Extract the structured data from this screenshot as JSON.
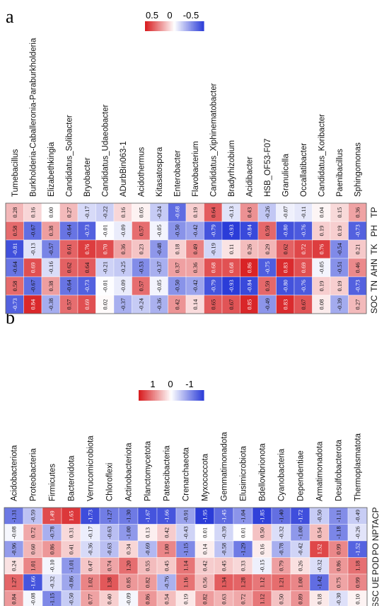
{
  "figure": {
    "panel_a_label": "a",
    "panel_b_label": "b"
  },
  "colors": {
    "positive": "#d7191c",
    "zero": "#ffffff",
    "negative": "#2b3cd8"
  },
  "chart_data": [
    {
      "type": "heatmap",
      "panel": "a",
      "colorbar": {
        "ticks": [
          "0.5",
          "0",
          "-0.5"
        ],
        "range": [
          -0.9,
          0.9
        ]
      },
      "columns": [
        "Tumebacillus",
        "Burkholderia-Caballeronia-Paraburkholderia",
        "Elizabethkingia",
        "Candidatus_Solibacter",
        "Bryobacter",
        "Candidatus_Udaeobacter",
        "ADurbBin063-1",
        "Acidothermus",
        "Kitasatospora",
        "Enterobacter",
        "Flavobacterium",
        "Candidatus_Xiphinematobacter",
        "Bradyrhizobium",
        "Acidibacter",
        "HSB_OF53-F07",
        "Granulicella",
        "Occallatibacter",
        "Candidatus_Koribacter",
        "Paenibacillus",
        "Sphingomonas"
      ],
      "rows": [
        "TP",
        "PH",
        "TK",
        "AHN",
        "TN",
        "SOC"
      ],
      "values": [
        [
          0.28,
          0.16,
          0.0,
          0.27,
          -0.17,
          -0.22,
          0.16,
          0.05,
          -0.24,
          -0.68,
          0.19,
          0.64,
          -0.13,
          0.43,
          -0.26,
          -0.07,
          -0.11,
          0.04,
          0.15,
          0.36
        ],
        [
          0.58,
          -0.67,
          0.38,
          -0.64,
          -0.73,
          -0.01,
          -0.09,
          0.57,
          -0.05,
          -0.5,
          -0.42,
          -0.79,
          -0.93,
          -0.84,
          0.59,
          -0.8,
          -0.76,
          0.19,
          0.19,
          -0.73
        ],
        [
          -0.81,
          -0.13,
          -0.57,
          0.61,
          0.76,
          0.7,
          0.36,
          0.23,
          -0.48,
          0.18,
          0.49,
          -0.19,
          0.11,
          0.26,
          0.29,
          0.62,
          0.72,
          0.76,
          -0.54,
          0.21
        ],
        [
          -0.64,
          0.69,
          -0.16,
          0.62,
          0.64,
          -0.21,
          -0.25,
          -0.53,
          -0.37,
          0.37,
          0.36,
          0.68,
          0.68,
          0.86,
          -0.75,
          0.83,
          0.69,
          -0.05,
          -0.51,
          0.46
        ],
        [
          0.58,
          -0.67,
          0.38,
          -0.64,
          -0.73,
          -0.01,
          -0.09,
          0.57,
          -0.05,
          -0.5,
          -0.42,
          -0.79,
          -0.93,
          -0.84,
          0.59,
          -0.8,
          -0.76,
          0.19,
          0.19,
          -0.73
        ],
        [
          -0.73,
          0.84,
          -0.38,
          0.57,
          0.69,
          0.02,
          -0.37,
          -0.24,
          -0.36,
          0.42,
          0.14,
          0.65,
          0.67,
          0.85,
          -0.49,
          0.83,
          0.67,
          0.08,
          -0.39,
          0.27
        ]
      ]
    },
    {
      "type": "heatmap",
      "panel": "b",
      "colorbar": {
        "ticks": [
          "1",
          "0",
          "-1"
        ],
        "range": [
          -1.9,
          1.9
        ]
      },
      "columns": [
        "Acidobacteriota",
        "Proteobacteria",
        "Firmicutes",
        "Bacteroidota",
        "Verrucomicrobiota",
        "Chloroflexi",
        "Actinobacteriota",
        "Planctomycetota",
        "Patescibacteria",
        "Crenarchaeota",
        "Myxococcota",
        "Gemmatimonadota",
        "Elusimicrobiota",
        "Bdellovibrionota",
        "Cyanobacteria",
        "Dependentiae",
        "Armatimonadota",
        "Desulfobacterota",
        "Thermoplasmatota"
      ],
      "rows": [
        "ACP",
        "NPT",
        "PO",
        "POD",
        "UE",
        "SSC"
      ],
      "values": [
        [
          -1.31,
          -0.59,
          1.49,
          1.65,
          -1.73,
          -1.27,
          -1.3,
          -1.67,
          -1.66,
          -0.91,
          -1.95,
          -1.45,
          -1.04,
          -1.85,
          -1.4,
          -1.72,
          -0.5,
          -1.11,
          -0.49
        ],
        [
          -0.08,
          0.72,
          -0.78,
          0.31,
          -0.17,
          -0.63,
          -1.0,
          0.13,
          0.42,
          -0.43,
          0.01,
          -0.39,
          0.01,
          0.5,
          -0.32,
          -1.0,
          0.54,
          -1.18,
          -0.26
        ],
        [
          -0.96,
          0.6,
          0.86,
          0.41,
          -0.36,
          -0.63,
          0.34,
          -0.69,
          1.0,
          -1.15,
          0.14,
          -0.58,
          -1.29,
          0.16,
          -0.78,
          -0.42,
          1.52,
          0.99,
          -1.52
        ],
        [
          0.24,
          1.01,
          -0.1,
          -1.01,
          0.47,
          0.74,
          1.2,
          0.55,
          0.45,
          1.14,
          0.42,
          0.45,
          0.33,
          -0.15,
          0.79,
          0.26,
          -0.32,
          0.86,
          1.18
        ],
        [
          1.27,
          -1.66,
          -0.32,
          -0.86,
          1.02,
          1.38,
          0.85,
          0.82,
          -0.76,
          1.16,
          0.56,
          1.34,
          1.28,
          1.12,
          1.21,
          1.0,
          -1.42,
          0.75,
          0.99
        ],
        [
          0.84,
          -0.08,
          -1.15,
          -0.5,
          0.77,
          0.4,
          -0.09,
          0.86,
          0.54,
          0.19,
          0.82,
          0.63,
          0.72,
          1.12,
          0.5,
          0.89,
          0.18,
          -0.3,
          0.1
        ]
      ]
    }
  ]
}
